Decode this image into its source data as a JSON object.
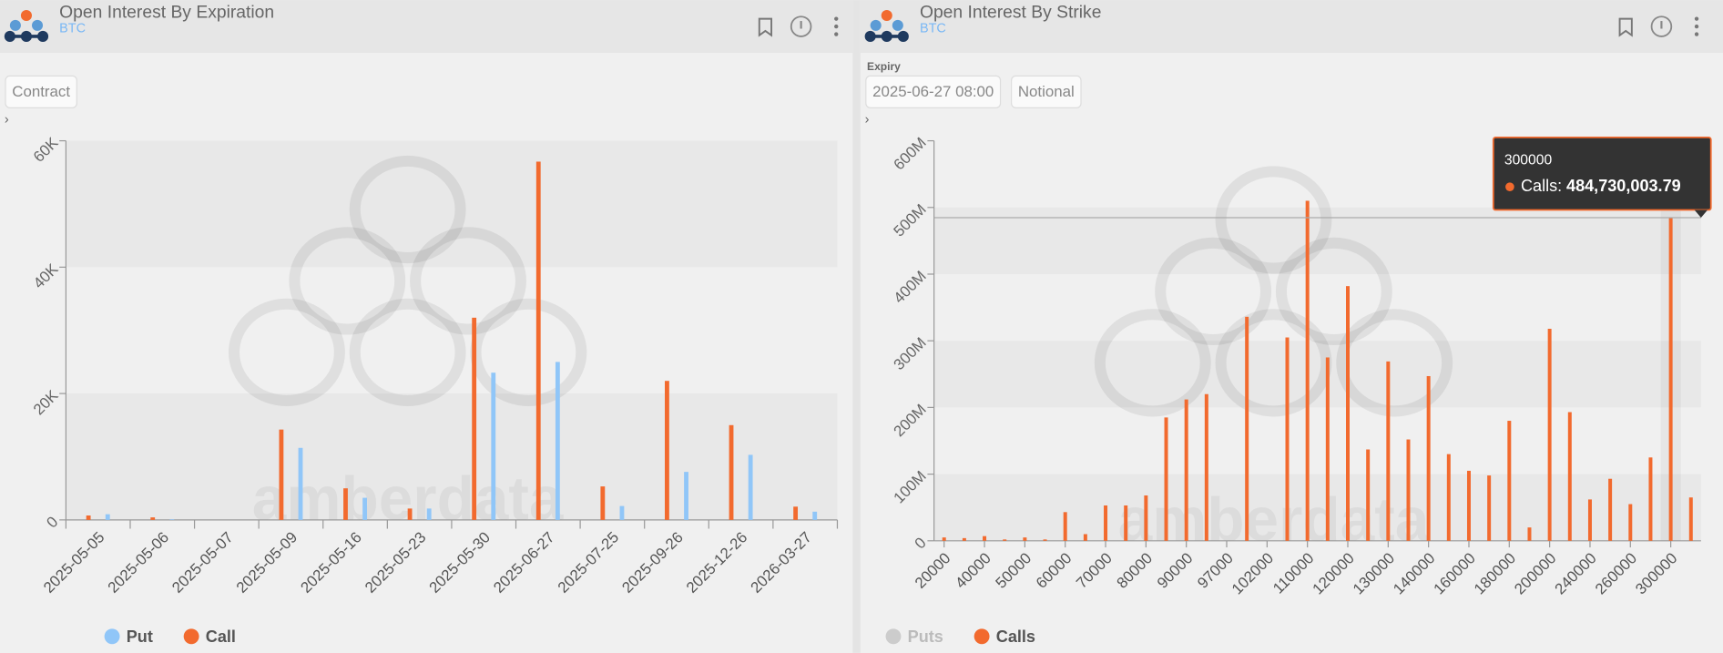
{
  "chart_data": [
    {
      "type": "bar",
      "title": "Open Interest By Expiration",
      "subtitle": "BTC",
      "controls": [
        "Contract"
      ],
      "categories": [
        "2025-05-05",
        "2025-05-06",
        "2025-05-07",
        "2025-05-09",
        "2025-05-16",
        "2025-05-23",
        "2025-05-30",
        "2025-06-27",
        "2025-07-25",
        "2025-09-26",
        "2025-12-26",
        "2026-03-27"
      ],
      "series": [
        {
          "name": "Put",
          "color": "#90c6f8",
          "visible": true,
          "values": [
            900,
            100,
            0,
            11400,
            3500,
            1800,
            23300,
            25000,
            2200,
            7600,
            10300,
            1300
          ]
        },
        {
          "name": "Call",
          "color": "#f26a2e",
          "visible": true,
          "values": [
            700,
            400,
            0,
            14300,
            5000,
            1800,
            32000,
            56700,
            5300,
            22000,
            15000,
            2100
          ]
        }
      ],
      "ylim": [
        0,
        60000
      ],
      "yticks": [
        0,
        {
          "value": 20000,
          "label": "20K"
        },
        {
          "value": 40000,
          "label": "40K"
        },
        {
          "value": 60000,
          "label": "60K"
        }
      ],
      "grid": true,
      "watermark": "amberdata"
    },
    {
      "type": "bar",
      "title": "Open Interest By Strike",
      "subtitle": "BTC",
      "controls_label": "Expiry",
      "controls": [
        "2025-06-27 08:00",
        "Notional"
      ],
      "categories": [
        "20000",
        null,
        "40000",
        null,
        "50000",
        null,
        "60000",
        null,
        "70000",
        null,
        "80000",
        null,
        "90000",
        null,
        "97000",
        null,
        "102000",
        null,
        "110000",
        null,
        "120000",
        null,
        "130000",
        null,
        "140000",
        null,
        "160000",
        null,
        "180000",
        null,
        "200000",
        null,
        "240000",
        null,
        "260000",
        null,
        "300000",
        null
      ],
      "series": [
        {
          "name": "Puts",
          "color": "#cccccc",
          "visible": false,
          "values": [
            null,
            null,
            null,
            null,
            null,
            null,
            null,
            null,
            null,
            null,
            null,
            null,
            null,
            null,
            null,
            null,
            null,
            null,
            null,
            null,
            null,
            null,
            null,
            null,
            null,
            null,
            null,
            null,
            null,
            null,
            null,
            null,
            null,
            null,
            null,
            null,
            null,
            null
          ]
        },
        {
          "name": "Calls",
          "color": "#f26a2e",
          "visible": true,
          "values": [
            5000000,
            4000000,
            7000000,
            2000000,
            5000000,
            2000000,
            43000000,
            10000000,
            53000000,
            53000000,
            68000000,
            185000000,
            212000000,
            220000000,
            0,
            336000000,
            0,
            305000000,
            510000000,
            275000000,
            382000000,
            137000000,
            269000000,
            152000000,
            247000000,
            130000000,
            105000000,
            98000000,
            180000000,
            20000000,
            318000000,
            193000000,
            62000000,
            93000000,
            55000000,
            125000000,
            484730003.79,
            65000000
          ]
        }
      ],
      "ylim": [
        0,
        600000000
      ],
      "yticks": [
        0,
        {
          "value": 100000000,
          "label": "100M"
        },
        {
          "value": 200000000,
          "label": "200M"
        },
        {
          "value": 300000000,
          "label": "300M"
        },
        {
          "value": 400000000,
          "label": "400M"
        },
        {
          "value": 500000000,
          "label": "500M"
        },
        {
          "value": 600000000,
          "label": "600M"
        }
      ],
      "grid": true,
      "watermark": "amberdata",
      "tooltip": {
        "title": "300000",
        "label": "Calls:",
        "value": 484730003.79,
        "value_label": "484,730,003.79"
      }
    }
  ]
}
